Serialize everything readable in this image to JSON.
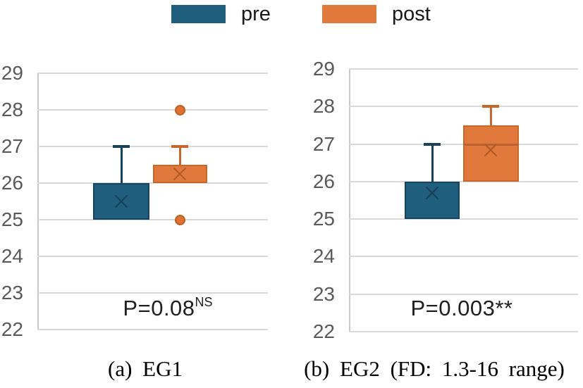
{
  "page": {
    "background": "#FFFFFF"
  },
  "legend": {
    "position": "top",
    "items": [
      {
        "label": "pre",
        "color": "#205E7E"
      },
      {
        "label": "post",
        "color": "#E2793C"
      }
    ]
  },
  "colors": {
    "pre": {
      "fill": "#205E7E",
      "border": "#17445C",
      "marker": "#163F54",
      "median": "#17445C"
    },
    "post": {
      "fill": "#E2793C",
      "border": "#C5682E",
      "marker": "#AE5A26",
      "median": "#B96330",
      "outlier_fill": "#DE7232",
      "outlier_border": "#BE5E25"
    },
    "grid": "#D9D9D9",
    "axis": "#C9C9C9",
    "tick_label": "#595959",
    "text": "#1F1F1F"
  },
  "chart_data": [
    {
      "type": "boxplot",
      "caption": "(a) EG1",
      "ylim": [
        22,
        29
      ],
      "yticks": [
        29,
        28,
        27,
        26,
        25,
        24,
        23,
        22
      ],
      "grid": true,
      "annotation": {
        "text": "P=0.08",
        "sup": "NS"
      },
      "series": [
        {
          "name": "pre",
          "q1": 25,
          "median": 26,
          "q3": 26,
          "whisker_low": 25,
          "whisker_high": 27,
          "mean": 25.5,
          "outliers": []
        },
        {
          "name": "post",
          "q1": 26,
          "median": 26,
          "q3": 26.5,
          "whisker_low": 26,
          "whisker_high": 27,
          "mean": 26.25,
          "outliers": [
            28,
            25
          ]
        }
      ]
    },
    {
      "type": "boxplot",
      "caption": "(b) EG2 (FD: 1.3-16 range)",
      "ylim": [
        22,
        29
      ],
      "yticks": [
        29,
        28,
        27,
        26,
        25,
        24,
        23,
        22
      ],
      "grid": true,
      "annotation": {
        "text": "P=0.003**",
        "sup": ""
      },
      "series": [
        {
          "name": "pre",
          "q1": 25,
          "median": 26,
          "q3": 26,
          "whisker_low": 25,
          "whisker_high": 27,
          "mean": 25.7,
          "outliers": []
        },
        {
          "name": "post",
          "q1": 26,
          "median": 27,
          "q3": 27.5,
          "whisker_low": 26,
          "whisker_high": 28,
          "mean": 26.85,
          "outliers": []
        }
      ]
    }
  ]
}
